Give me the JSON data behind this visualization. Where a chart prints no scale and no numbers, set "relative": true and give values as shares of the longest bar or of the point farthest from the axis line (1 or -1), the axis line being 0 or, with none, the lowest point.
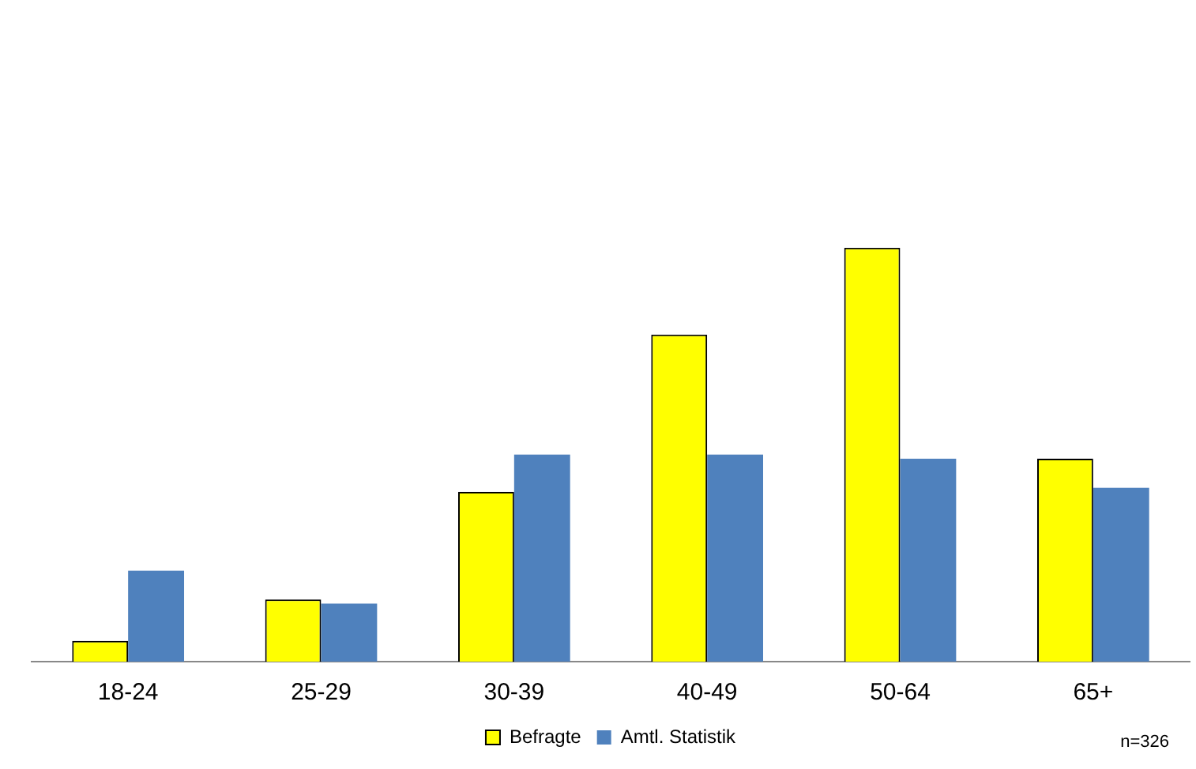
{
  "chart_data": {
    "type": "bar",
    "relative": true,
    "categories": [
      "18-24",
      "25-29",
      "30-39",
      "40-49",
      "50-64",
      "65+"
    ],
    "series": [
      {
        "name": "Befragte",
        "color": "#ffff00",
        "values": [
          0.05,
          0.15,
          0.41,
          0.79,
          1,
          0.49
        ]
      },
      {
        "name": "Amtl. Statistik",
        "color": "#4f81bd",
        "values": [
          0.22,
          0.14,
          0.5,
          0.5,
          0.49,
          0.42
        ]
      }
    ],
    "legend": "bottom",
    "grid": false,
    "annotations": [
      "n=326"
    ]
  }
}
